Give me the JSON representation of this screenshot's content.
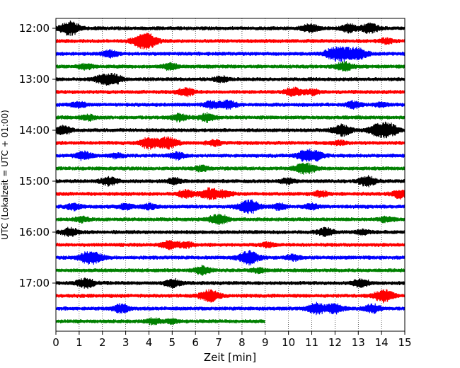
{
  "chart_data": {
    "type": "line",
    "subtype": "helicorder",
    "xlabel": "Zeit  [min]",
    "ylabel": "UTC (Lokalzeit = UTC + 01:00)",
    "xlim": [
      0,
      15
    ],
    "x_ticks": [
      "0",
      "1",
      "2",
      "3",
      "4",
      "5",
      "6",
      "7",
      "8",
      "9",
      "10",
      "11",
      "12",
      "13",
      "14",
      "15"
    ],
    "y_ticks": [
      {
        "label": "12:00",
        "row": 0
      },
      {
        "label": "13:00",
        "row": 4
      },
      {
        "label": "14:00",
        "row": 8
      },
      {
        "label": "15:00",
        "row": 12
      },
      {
        "label": "16:00",
        "row": 16
      },
      {
        "label": "17:00",
        "row": 20
      }
    ],
    "grid": "vertical dotted",
    "trace_minutes": 15,
    "colors": [
      "#000000",
      "#ff0000",
      "#0000ff",
      "#008000"
    ],
    "series": [
      {
        "start": "12:00",
        "end_min": 15,
        "bursts": [
          [
            0.6,
            1.0
          ],
          [
            10.9,
            0.6
          ],
          [
            12.6,
            0.6
          ],
          [
            13.5,
            0.7
          ]
        ]
      },
      {
        "start": "12:15",
        "end_min": 15,
        "bursts": [
          [
            3.7,
            1.0
          ],
          [
            4.1,
            0.5
          ],
          [
            14.2,
            0.4
          ]
        ]
      },
      {
        "start": "12:30",
        "end_min": 15,
        "bursts": [
          [
            2.3,
            0.5
          ],
          [
            11.8,
            0.5
          ],
          [
            12.3,
            1.0
          ],
          [
            13.0,
            0.8
          ]
        ]
      },
      {
        "start": "12:45",
        "end_min": 15,
        "bursts": [
          [
            1.3,
            0.4
          ],
          [
            4.9,
            0.5
          ],
          [
            12.4,
            0.6
          ]
        ]
      },
      {
        "start": "13:00",
        "end_min": 15,
        "bursts": [
          [
            2.0,
            0.6
          ],
          [
            2.5,
            0.7
          ],
          [
            7.1,
            0.4
          ]
        ]
      },
      {
        "start": "13:15",
        "end_min": 15,
        "bursts": [
          [
            5.6,
            0.6
          ],
          [
            10.2,
            0.6
          ],
          [
            11.0,
            0.4
          ]
        ]
      },
      {
        "start": "13:30",
        "end_min": 15,
        "bursts": [
          [
            1.0,
            0.4
          ],
          [
            6.7,
            0.5
          ],
          [
            7.4,
            0.6
          ],
          [
            12.8,
            0.5
          ],
          [
            14.0,
            0.3
          ]
        ]
      },
      {
        "start": "13:45",
        "end_min": 15,
        "bursts": [
          [
            1.4,
            0.4
          ],
          [
            5.3,
            0.5
          ],
          [
            6.5,
            0.6
          ]
        ]
      },
      {
        "start": "14:00",
        "end_min": 15,
        "bursts": [
          [
            0.3,
            0.6
          ],
          [
            12.3,
            0.8
          ],
          [
            13.9,
            1.0
          ],
          [
            14.4,
            0.7
          ]
        ]
      },
      {
        "start": "14:15",
        "end_min": 15,
        "bursts": [
          [
            4.0,
            0.8
          ],
          [
            4.8,
            0.9
          ],
          [
            6.8,
            0.4
          ],
          [
            12.2,
            0.3
          ]
        ]
      },
      {
        "start": "14:30",
        "end_min": 15,
        "bursts": [
          [
            1.2,
            0.6
          ],
          [
            2.6,
            0.3
          ],
          [
            5.2,
            0.5
          ],
          [
            10.8,
            0.9
          ],
          [
            11.3,
            0.4
          ]
        ]
      },
      {
        "start": "14:45",
        "end_min": 15,
        "bursts": [
          [
            6.3,
            0.4
          ],
          [
            10.6,
            0.7
          ],
          [
            11.0,
            0.3
          ]
        ]
      },
      {
        "start": "15:00",
        "end_min": 15,
        "bursts": [
          [
            2.3,
            0.6
          ],
          [
            5.1,
            0.4
          ],
          [
            10.0,
            0.4
          ],
          [
            13.4,
            0.7
          ]
        ]
      },
      {
        "start": "15:15",
        "end_min": 15,
        "bursts": [
          [
            5.6,
            0.6
          ],
          [
            6.6,
            0.8
          ],
          [
            7.3,
            0.5
          ],
          [
            11.4,
            0.4
          ],
          [
            14.8,
            0.6
          ]
        ]
      },
      {
        "start": "15:30",
        "end_min": 15,
        "bursts": [
          [
            0.8,
            0.5
          ],
          [
            3.0,
            0.4
          ],
          [
            4.0,
            0.4
          ],
          [
            8.3,
            1.0
          ],
          [
            9.6,
            0.4
          ],
          [
            11.0,
            0.4
          ]
        ]
      },
      {
        "start": "15:45",
        "end_min": 15,
        "bursts": [
          [
            1.1,
            0.4
          ],
          [
            7.0,
            0.8
          ],
          [
            14.2,
            0.4
          ]
        ]
      },
      {
        "start": "16:00",
        "end_min": 15,
        "bursts": [
          [
            0.6,
            0.6
          ],
          [
            11.6,
            0.6
          ],
          [
            13.2,
            0.3
          ]
        ]
      },
      {
        "start": "16:15",
        "end_min": 15,
        "bursts": [
          [
            4.9,
            0.6
          ],
          [
            5.6,
            0.4
          ],
          [
            9.1,
            0.3
          ]
        ]
      },
      {
        "start": "16:30",
        "end_min": 15,
        "bursts": [
          [
            1.3,
            0.6
          ],
          [
            1.7,
            0.7
          ],
          [
            8.3,
            1.0
          ],
          [
            10.2,
            0.4
          ]
        ]
      },
      {
        "start": "16:45",
        "end_min": 15,
        "bursts": [
          [
            6.3,
            0.6
          ],
          [
            8.7,
            0.3
          ]
        ]
      },
      {
        "start": "17:00",
        "end_min": 15,
        "bursts": [
          [
            1.3,
            0.7
          ],
          [
            5.0,
            0.6
          ],
          [
            13.1,
            0.6
          ]
        ]
      },
      {
        "start": "17:15",
        "end_min": 15,
        "bursts": [
          [
            6.6,
            0.9
          ],
          [
            14.1,
            0.9
          ]
        ]
      },
      {
        "start": "17:30",
        "end_min": 15,
        "bursts": [
          [
            2.8,
            0.6
          ],
          [
            11.2,
            0.8
          ],
          [
            12.0,
            0.7
          ],
          [
            13.6,
            0.6
          ]
        ]
      },
      {
        "start": "17:45",
        "end_min": 9,
        "bursts": [
          [
            4.2,
            0.4
          ],
          [
            5.0,
            0.3
          ]
        ]
      }
    ]
  }
}
